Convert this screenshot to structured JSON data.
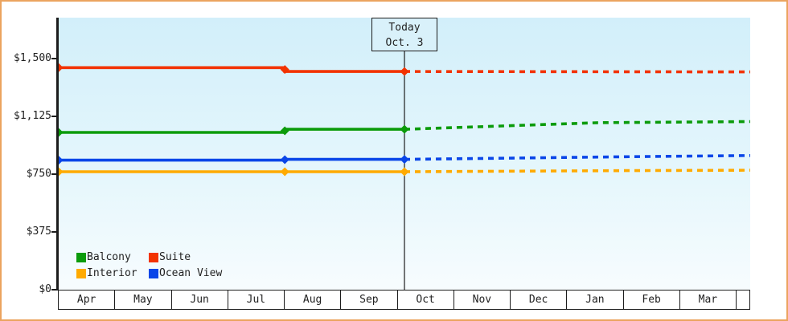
{
  "window": {
    "border_color": "#eba45f",
    "background_color": "#ffffff",
    "axis_color": "#1c1c1c",
    "text_color": "#222222",
    "plot_gradient_top": "#d2effa",
    "plot_gradient_bottom": "#f7fcfe"
  },
  "today_marker": {
    "line1": "Today",
    "line2": "Oct. 3",
    "box_background": "#d9f1fa"
  },
  "chart_data": {
    "type": "line",
    "title": "",
    "xlabel": "",
    "ylabel": "",
    "x_categories": [
      "Apr",
      "May",
      "Jun",
      "Jul",
      "Aug",
      "Sep",
      "Oct",
      "Nov",
      "Dec",
      "Jan",
      "Feb",
      "Mar"
    ],
    "x_range_fraction": [
      0,
      1
    ],
    "today_fraction": 0.5,
    "ylim": [
      0,
      1764
    ],
    "grid": false,
    "y_ticks": [
      {
        "label": "$1,500",
        "value": 1500
      },
      {
        "label": "$1,125",
        "value": 1125
      },
      {
        "label": "$750",
        "value": 750
      },
      {
        "label": "$375",
        "value": 375
      },
      {
        "label": "$0",
        "value": 0
      }
    ],
    "series": [
      {
        "name": "Suite",
        "color": "#f23301",
        "solid": [
          [
            0,
            1440
          ],
          [
            0.327,
            1440
          ],
          [
            0.327,
            1415
          ],
          [
            0.5,
            1415
          ]
        ],
        "dashed": [
          [
            0.5,
            1415
          ],
          [
            1,
            1412
          ]
        ],
        "markers": [
          [
            0,
            1440
          ],
          [
            0.327,
            1428
          ],
          [
            0.5,
            1415
          ]
        ]
      },
      {
        "name": "Balcony",
        "color": "#0b9b0b",
        "solid": [
          [
            0,
            1020
          ],
          [
            0.327,
            1020
          ],
          [
            0.327,
            1040
          ],
          [
            0.5,
            1040
          ]
        ],
        "dashed": [
          [
            0.5,
            1040
          ],
          [
            0.78,
            1083
          ],
          [
            1,
            1090
          ]
        ],
        "markers": [
          [
            0,
            1020
          ],
          [
            0.327,
            1030
          ],
          [
            0.5,
            1040
          ]
        ]
      },
      {
        "name": "Ocean View",
        "color": "#0a46e8",
        "solid": [
          [
            0,
            840
          ],
          [
            0.327,
            840
          ],
          [
            0.327,
            845
          ],
          [
            0.5,
            845
          ]
        ],
        "dashed": [
          [
            0.5,
            845
          ],
          [
            0.82,
            862
          ],
          [
            1,
            870
          ]
        ],
        "markers": [
          [
            0,
            840
          ],
          [
            0.327,
            843
          ],
          [
            0.5,
            845
          ]
        ]
      },
      {
        "name": "Interior",
        "color": "#ffaa00",
        "solid": [
          [
            0,
            765
          ],
          [
            0.5,
            765
          ]
        ],
        "dashed": [
          [
            0.5,
            765
          ],
          [
            0.82,
            772
          ],
          [
            1,
            775
          ]
        ],
        "markers": [
          [
            0,
            765
          ],
          [
            0.327,
            765
          ],
          [
            0.5,
            765
          ]
        ]
      }
    ],
    "legend": {
      "position": "bottom-left",
      "items": [
        {
          "label": "Balcony",
          "color": "#0b9b0b"
        },
        {
          "label": "Suite",
          "color": "#f23301"
        },
        {
          "label": "Interior",
          "color": "#ffaa00"
        },
        {
          "label": "Ocean View",
          "color": "#0a46e8"
        }
      ]
    }
  }
}
